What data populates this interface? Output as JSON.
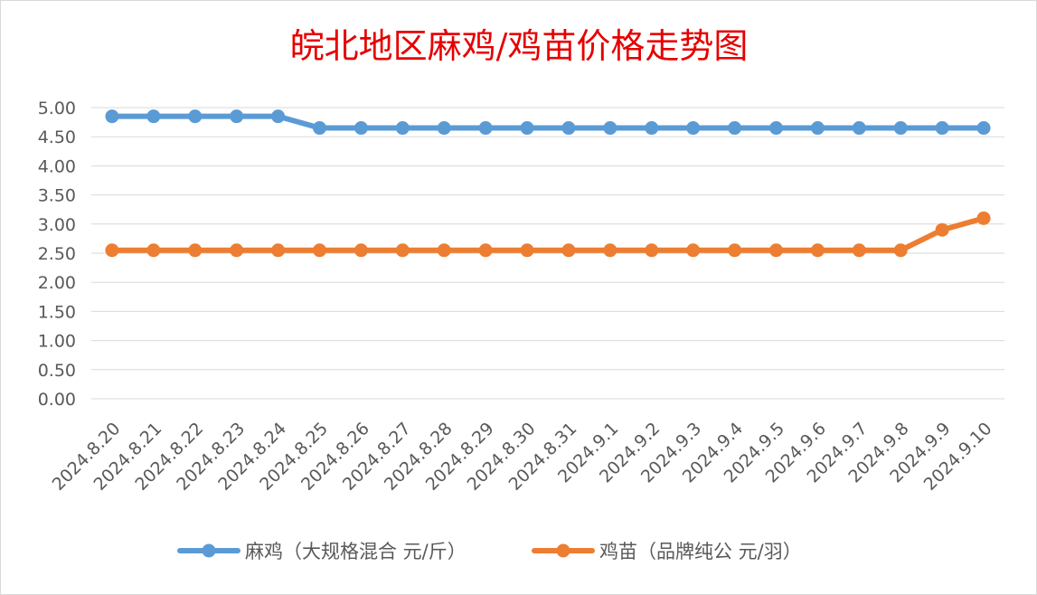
{
  "chart_data": {
    "type": "line",
    "title": "皖北地区麻鸡/鸡苗价格走势图",
    "categories": [
      "2024.8.20",
      "2024.8.21",
      "2024.8.22",
      "2024.8.23",
      "2024.8.24",
      "2024.8.25",
      "2024.8.26",
      "2024.8.27",
      "2024.8.28",
      "2024.8.29",
      "2024.8.30",
      "2024.8.31",
      "2024.9.1",
      "2024.9.2",
      "2024.9.3",
      "2024.9.4",
      "2024.9.5",
      "2024.9.6",
      "2024.9.7",
      "2024.9.8",
      "2024.9.9",
      "2024.9.10"
    ],
    "series": [
      {
        "name": "麻鸡（大规格混合 元/斤）",
        "color": "#5b9bd5",
        "values": [
          4.85,
          4.85,
          4.85,
          4.85,
          4.85,
          4.65,
          4.65,
          4.65,
          4.65,
          4.65,
          4.65,
          4.65,
          4.65,
          4.65,
          4.65,
          4.65,
          4.65,
          4.65,
          4.65,
          4.65,
          4.65,
          4.65
        ]
      },
      {
        "name": "鸡苗（品牌纯公 元/羽）",
        "color": "#ed7d31",
        "values": [
          2.55,
          2.55,
          2.55,
          2.55,
          2.55,
          2.55,
          2.55,
          2.55,
          2.55,
          2.55,
          2.55,
          2.55,
          2.55,
          2.55,
          2.55,
          2.55,
          2.55,
          2.55,
          2.55,
          2.55,
          2.9,
          3.1
        ]
      }
    ],
    "ylim": [
      0,
      5
    ],
    "yticks": [
      "0.00",
      "0.50",
      "1.00",
      "1.50",
      "2.00",
      "2.50",
      "3.00",
      "3.50",
      "4.00",
      "4.50",
      "5.00"
    ],
    "grid": true,
    "legend": "bottom"
  }
}
